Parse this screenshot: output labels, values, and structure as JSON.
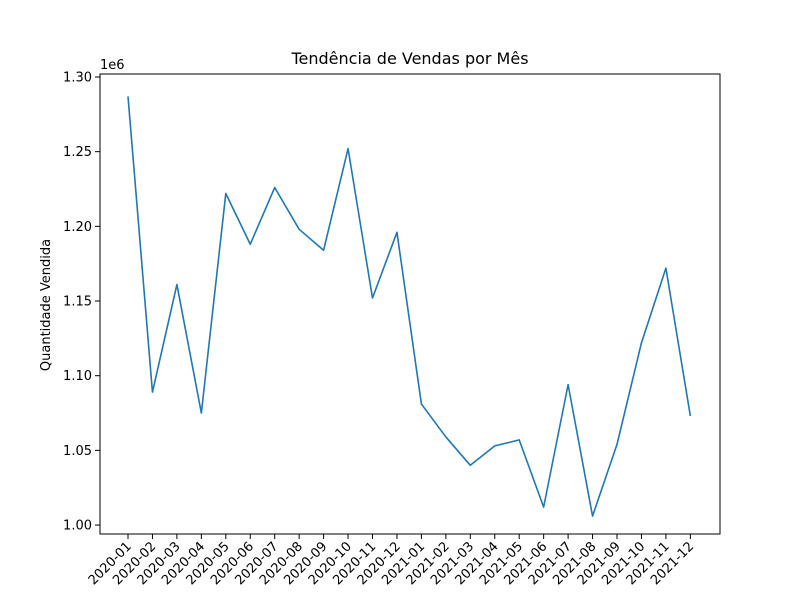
{
  "chart_data": {
    "type": "line",
    "title": "Tendência de Vendas por Mês",
    "xlabel": "",
    "ylabel": "Quantidade Vendida",
    "y_offset_label": "1e6",
    "categories": [
      "2020-01",
      "2020-02",
      "2020-03",
      "2020-04",
      "2020-05",
      "2020-06",
      "2020-07",
      "2020-08",
      "2020-09",
      "2020-10",
      "2020-11",
      "2020-12",
      "2021-01",
      "2021-02",
      "2021-03",
      "2021-04",
      "2021-05",
      "2021-06",
      "2021-07",
      "2021-08",
      "2021-09",
      "2021-10",
      "2021-11",
      "2021-12"
    ],
    "values": [
      1287000,
      1089000,
      1161000,
      1075000,
      1222000,
      1188000,
      1226000,
      1198000,
      1184000,
      1252000,
      1152000,
      1196000,
      1081000,
      1059000,
      1040000,
      1053000,
      1057000,
      1012000,
      1094000,
      1006000,
      1054000,
      1122000,
      1172000,
      1073000
    ],
    "yticks": [
      1.0,
      1.05,
      1.1,
      1.15,
      1.2,
      1.25,
      1.3
    ],
    "ytick_labels": [
      "1.00",
      "1.05",
      "1.10",
      "1.15",
      "1.20",
      "1.25",
      "1.30"
    ],
    "ylim": [
      994000,
      1302000
    ],
    "grid": false,
    "legend": false,
    "line_color": "#1f77b4"
  }
}
